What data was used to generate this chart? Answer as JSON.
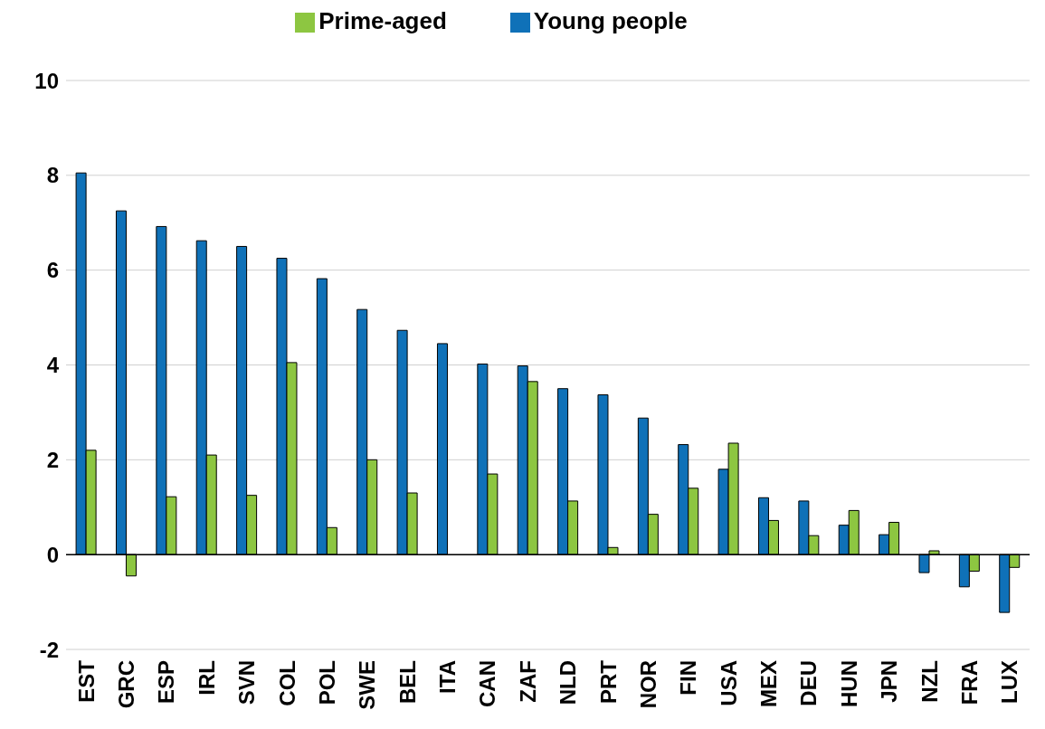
{
  "chart_data": {
    "type": "bar",
    "categories": [
      "EST",
      "GRC",
      "ESP",
      "IRL",
      "SVN",
      "COL",
      "POL",
      "SWE",
      "BEL",
      "ITA",
      "CAN",
      "ZAF",
      "NLD",
      "PRT",
      "NOR",
      "FIN",
      "USA",
      "MEX",
      "DEU",
      "HUN",
      "JPN",
      "NZL",
      "FRA",
      "LUX"
    ],
    "series": [
      {
        "name": "Young people",
        "color": "#0f71b8",
        "values": [
          8.05,
          7.25,
          6.92,
          6.62,
          6.5,
          6.25,
          5.82,
          5.17,
          4.73,
          4.45,
          4.02,
          3.98,
          3.5,
          3.37,
          2.88,
          2.32,
          1.8,
          1.2,
          1.13,
          0.62,
          0.42,
          -0.38,
          -0.68,
          -1.22
        ]
      },
      {
        "name": "Prime-aged",
        "color": "#8dc641",
        "values": [
          2.2,
          -0.45,
          1.22,
          2.1,
          1.25,
          4.05,
          0.57,
          2.0,
          1.3,
          0,
          1.7,
          3.65,
          1.13,
          0.15,
          0.85,
          1.4,
          2.35,
          0.72,
          0.4,
          0.93,
          0.68,
          0.08,
          -0.35,
          -0.27
        ]
      }
    ],
    "ylim": [
      -2,
      10
    ],
    "yticks": [
      -2,
      0,
      2,
      4,
      6,
      8,
      10
    ],
    "grid": "y",
    "legend": "top"
  }
}
